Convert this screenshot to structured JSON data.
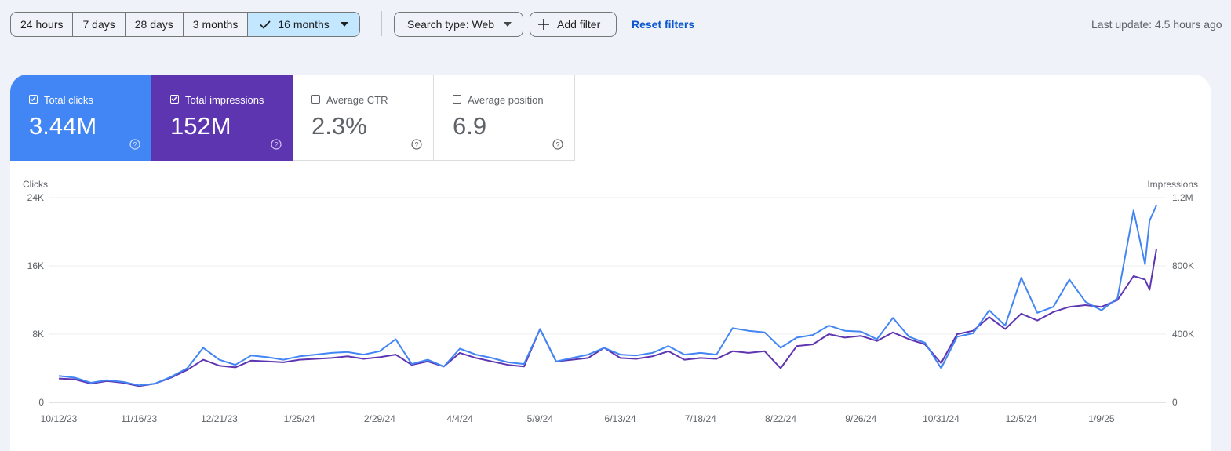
{
  "toolbar": {
    "ranges": [
      "24 hours",
      "7 days",
      "28 days",
      "3 months",
      "16 months"
    ],
    "active_range": "16 months",
    "search_type": "Search type: Web",
    "add_filter": "Add filter",
    "reset_filters": "Reset filters",
    "last_update": "Last update: 4.5 hours ago"
  },
  "metrics": {
    "clicks": {
      "label": "Total clicks",
      "value": "3.44M",
      "checked": true,
      "color": "#4285f4"
    },
    "impressions": {
      "label": "Total impressions",
      "value": "152M",
      "checked": true,
      "color": "#5e35b1"
    },
    "ctr": {
      "label": "Average CTR",
      "value": "2.3%",
      "checked": false
    },
    "position": {
      "label": "Average position",
      "value": "6.9",
      "checked": false
    }
  },
  "chart_data": {
    "type": "line",
    "left_axis_title": "Clicks",
    "right_axis_title": "Impressions",
    "left_ticks": [
      "0",
      "8K",
      "16K",
      "24K"
    ],
    "right_ticks": [
      "0",
      "400K",
      "800K",
      "1.2M"
    ],
    "ylim_left": [
      0,
      24000
    ],
    "ylim_right": [
      0,
      1200000
    ],
    "x_tick_labels": [
      "10/12/23",
      "11/16/23",
      "12/21/23",
      "1/25/24",
      "2/29/24",
      "4/4/24",
      "5/9/24",
      "6/13/24",
      "7/18/24",
      "8/22/24",
      "9/26/24",
      "10/31/24",
      "12/5/24",
      "1/9/25"
    ],
    "x_start": "2023-10-12",
    "x_end": "2025-02-02",
    "grid": true,
    "series": [
      {
        "name": "Total clicks",
        "axis": "left",
        "color": "#4285f4",
        "points": [
          [
            "2023-10-12",
            3100
          ],
          [
            "2023-10-19",
            2900
          ],
          [
            "2023-10-26",
            2300
          ],
          [
            "2023-11-02",
            2600
          ],
          [
            "2023-11-09",
            2400
          ],
          [
            "2023-11-16",
            2000
          ],
          [
            "2023-11-23",
            2200
          ],
          [
            "2023-11-30",
            3000
          ],
          [
            "2023-12-07",
            4000
          ],
          [
            "2023-12-14",
            6400
          ],
          [
            "2023-12-21",
            5000
          ],
          [
            "2023-12-28",
            4400
          ],
          [
            "2024-01-04",
            5500
          ],
          [
            "2024-01-11",
            5300
          ],
          [
            "2024-01-18",
            5000
          ],
          [
            "2024-01-25",
            5400
          ],
          [
            "2024-02-01",
            5600
          ],
          [
            "2024-02-08",
            5800
          ],
          [
            "2024-02-15",
            5900
          ],
          [
            "2024-02-22",
            5600
          ],
          [
            "2024-02-29",
            6000
          ],
          [
            "2024-03-07",
            7400
          ],
          [
            "2024-03-14",
            4500
          ],
          [
            "2024-03-21",
            5000
          ],
          [
            "2024-03-28",
            4200
          ],
          [
            "2024-04-04",
            6300
          ],
          [
            "2024-04-11",
            5600
          ],
          [
            "2024-04-18",
            5200
          ],
          [
            "2024-04-25",
            4700
          ],
          [
            "2024-05-02",
            4500
          ],
          [
            "2024-05-09",
            8600
          ],
          [
            "2024-05-16",
            4800
          ],
          [
            "2024-05-23",
            5200
          ],
          [
            "2024-05-30",
            5600
          ],
          [
            "2024-06-06",
            6400
          ],
          [
            "2024-06-13",
            5600
          ],
          [
            "2024-06-20",
            5500
          ],
          [
            "2024-06-27",
            5800
          ],
          [
            "2024-07-04",
            6600
          ],
          [
            "2024-07-11",
            5600
          ],
          [
            "2024-07-18",
            5800
          ],
          [
            "2024-07-25",
            5600
          ],
          [
            "2024-08-01",
            8700
          ],
          [
            "2024-08-08",
            8400
          ],
          [
            "2024-08-15",
            8200
          ],
          [
            "2024-08-22",
            6400
          ],
          [
            "2024-08-29",
            7600
          ],
          [
            "2024-09-05",
            7900
          ],
          [
            "2024-09-12",
            9000
          ],
          [
            "2024-09-19",
            8400
          ],
          [
            "2024-09-26",
            8300
          ],
          [
            "2024-10-03",
            7400
          ],
          [
            "2024-10-10",
            9900
          ],
          [
            "2024-10-17",
            7700
          ],
          [
            "2024-10-24",
            7000
          ],
          [
            "2024-10-31",
            4000
          ],
          [
            "2024-11-07",
            7700
          ],
          [
            "2024-11-14",
            8100
          ],
          [
            "2024-11-21",
            10800
          ],
          [
            "2024-11-28",
            9000
          ],
          [
            "2024-12-05",
            14600
          ],
          [
            "2024-12-12",
            10500
          ],
          [
            "2024-12-19",
            11200
          ],
          [
            "2024-12-26",
            14400
          ],
          [
            "2025-01-02",
            11800
          ],
          [
            "2025-01-09",
            10800
          ],
          [
            "2025-01-16",
            12200
          ],
          [
            "2025-01-23",
            22500
          ],
          [
            "2025-01-28",
            16200
          ],
          [
            "2025-01-30",
            21300
          ],
          [
            "2025-02-02",
            23100
          ]
        ]
      },
      {
        "name": "Total impressions",
        "axis": "right",
        "color": "#5e35b1",
        "points": [
          [
            "2023-10-12",
            140000
          ],
          [
            "2023-10-19",
            135000
          ],
          [
            "2023-10-26",
            110000
          ],
          [
            "2023-11-02",
            125000
          ],
          [
            "2023-11-09",
            115000
          ],
          [
            "2023-11-16",
            95000
          ],
          [
            "2023-11-23",
            110000
          ],
          [
            "2023-11-30",
            145000
          ],
          [
            "2023-12-07",
            190000
          ],
          [
            "2023-12-14",
            250000
          ],
          [
            "2023-12-21",
            215000
          ],
          [
            "2023-12-28",
            205000
          ],
          [
            "2024-01-04",
            245000
          ],
          [
            "2024-01-11",
            240000
          ],
          [
            "2024-01-18",
            235000
          ],
          [
            "2024-01-25",
            250000
          ],
          [
            "2024-02-01",
            255000
          ],
          [
            "2024-02-08",
            260000
          ],
          [
            "2024-02-15",
            270000
          ],
          [
            "2024-02-22",
            255000
          ],
          [
            "2024-02-29",
            265000
          ],
          [
            "2024-03-07",
            280000
          ],
          [
            "2024-03-14",
            220000
          ],
          [
            "2024-03-21",
            240000
          ],
          [
            "2024-03-28",
            210000
          ],
          [
            "2024-04-04",
            290000
          ],
          [
            "2024-04-11",
            260000
          ],
          [
            "2024-04-18",
            240000
          ],
          [
            "2024-04-25",
            220000
          ],
          [
            "2024-05-02",
            210000
          ],
          [
            "2024-05-09",
            430000
          ],
          [
            "2024-05-16",
            240000
          ],
          [
            "2024-05-23",
            250000
          ],
          [
            "2024-05-30",
            260000
          ],
          [
            "2024-06-06",
            320000
          ],
          [
            "2024-06-13",
            260000
          ],
          [
            "2024-06-20",
            255000
          ],
          [
            "2024-06-27",
            270000
          ],
          [
            "2024-07-04",
            300000
          ],
          [
            "2024-07-11",
            250000
          ],
          [
            "2024-07-18",
            260000
          ],
          [
            "2024-07-25",
            255000
          ],
          [
            "2024-08-01",
            300000
          ],
          [
            "2024-08-08",
            290000
          ],
          [
            "2024-08-15",
            300000
          ],
          [
            "2024-08-22",
            200000
          ],
          [
            "2024-08-29",
            330000
          ],
          [
            "2024-09-05",
            340000
          ],
          [
            "2024-09-12",
            400000
          ],
          [
            "2024-09-19",
            380000
          ],
          [
            "2024-09-26",
            390000
          ],
          [
            "2024-10-03",
            360000
          ],
          [
            "2024-10-10",
            410000
          ],
          [
            "2024-10-17",
            370000
          ],
          [
            "2024-10-24",
            340000
          ],
          [
            "2024-10-31",
            230000
          ],
          [
            "2024-11-07",
            400000
          ],
          [
            "2024-11-14",
            420000
          ],
          [
            "2024-11-21",
            500000
          ],
          [
            "2024-11-28",
            430000
          ],
          [
            "2024-12-05",
            520000
          ],
          [
            "2024-12-12",
            480000
          ],
          [
            "2024-12-19",
            530000
          ],
          [
            "2024-12-26",
            560000
          ],
          [
            "2025-01-02",
            570000
          ],
          [
            "2025-01-09",
            560000
          ],
          [
            "2025-01-16",
            600000
          ],
          [
            "2025-01-23",
            740000
          ],
          [
            "2025-01-28",
            720000
          ],
          [
            "2025-01-30",
            660000
          ],
          [
            "2025-02-02",
            900000
          ]
        ]
      }
    ]
  }
}
